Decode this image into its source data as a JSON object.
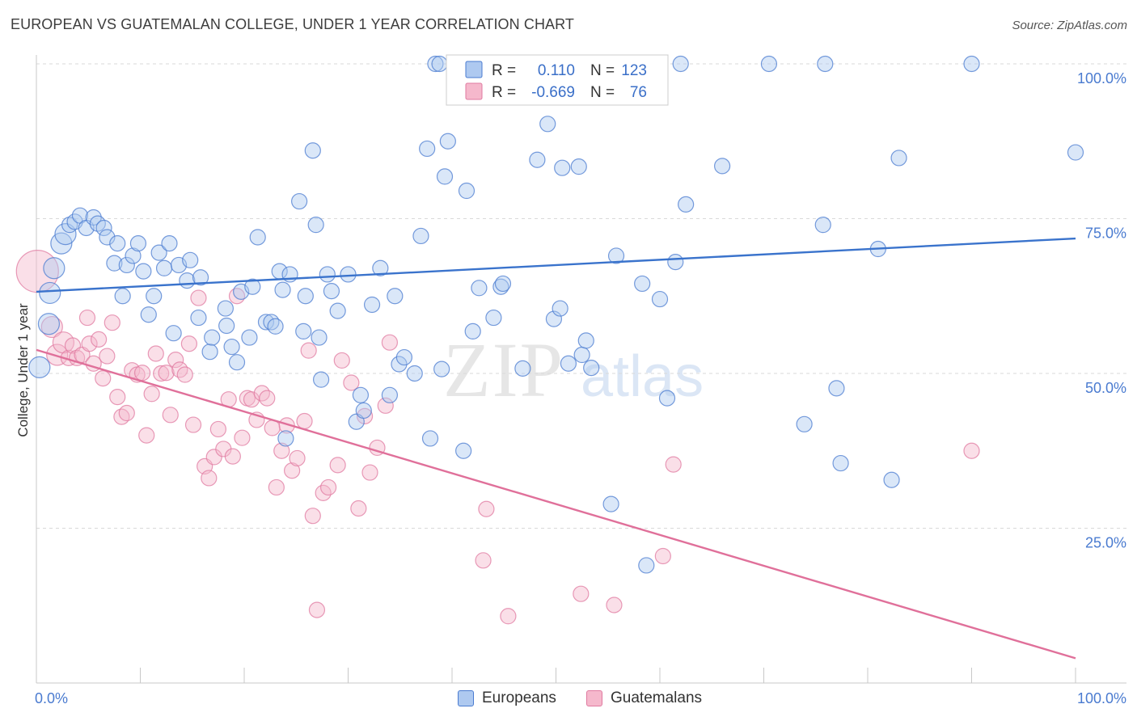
{
  "header": {
    "title": "EUROPEAN VS GUATEMALAN COLLEGE, UNDER 1 YEAR CORRELATION CHART",
    "source": "Source: ZipAtlas.com"
  },
  "watermark": {
    "zip": "ZIP",
    "atlas": "atlas"
  },
  "colors": {
    "blue": "#4a7bd0",
    "blue_fill": "#aec9f0",
    "blue_line": "#3a73cc",
    "pink": "#e07aa0",
    "pink_fill": "#f5b8cc",
    "pink_line": "#e0709a",
    "grid": "#d9d9d9"
  },
  "stats_legend": [
    {
      "series": "Europeans",
      "r_label": "R =",
      "r_value": "0.110",
      "n_label": "N =",
      "n_value": "123"
    },
    {
      "series": "Guatemalans",
      "r_label": "R =",
      "r_value": "-0.669",
      "n_label": "N =",
      "n_value": "76"
    }
  ],
  "chart_data": {
    "type": "scatter",
    "title": "EUROPEAN VS GUATEMALAN COLLEGE, UNDER 1 YEAR CORRELATION CHART",
    "xlabel": "",
    "ylabel": "College, Under 1 year",
    "xlim": [
      0,
      100
    ],
    "ylim": [
      0,
      100
    ],
    "x_tick_labels": [
      "0.0%",
      "100.0%"
    ],
    "y_tick_labels": [
      "25.0%",
      "50.0%",
      "75.0%",
      "100.0%"
    ],
    "y_ticks": [
      25,
      50,
      75,
      100
    ],
    "legend": [
      "Europeans",
      "Guatemalans"
    ],
    "legend_position": "bottom-center",
    "series": [
      {
        "name": "Europeans",
        "trend": {
          "x": [
            0,
            100
          ],
          "y": [
            63.2,
            71.8
          ]
        },
        "points": [
          [
            0.3,
            51
          ],
          [
            1.2,
            58
          ],
          [
            1.3,
            63
          ],
          [
            1.7,
            67
          ],
          [
            2.4,
            71
          ],
          [
            2.8,
            72.5
          ],
          [
            3.2,
            74
          ],
          [
            3.7,
            74.5
          ],
          [
            4.2,
            75.5
          ],
          [
            4.8,
            73.5
          ],
          [
            5.5,
            75.2
          ],
          [
            5.9,
            74.2
          ],
          [
            6.5,
            73.5
          ],
          [
            6.8,
            72
          ],
          [
            7.5,
            67.8
          ],
          [
            7.8,
            71
          ],
          [
            8.3,
            62.5
          ],
          [
            8.7,
            67.5
          ],
          [
            9.3,
            69
          ],
          [
            9.8,
            71
          ],
          [
            10.3,
            66.5
          ],
          [
            10.8,
            59.5
          ],
          [
            11.3,
            62.5
          ],
          [
            11.8,
            69.5
          ],
          [
            12.3,
            67
          ],
          [
            12.8,
            71
          ],
          [
            13.2,
            56.5
          ],
          [
            13.7,
            67.5
          ],
          [
            14.5,
            65
          ],
          [
            14.8,
            68.3
          ],
          [
            15.8,
            65.5
          ],
          [
            15.6,
            59
          ],
          [
            16.7,
            53.5
          ],
          [
            16.9,
            55.8
          ],
          [
            18.2,
            60.5
          ],
          [
            18.3,
            57.7
          ],
          [
            18.8,
            54.3
          ],
          [
            19.3,
            51.8
          ],
          [
            19.7,
            63.2
          ],
          [
            20.5,
            55.8
          ],
          [
            20.8,
            64
          ],
          [
            21.3,
            72
          ],
          [
            22.1,
            58.3
          ],
          [
            22.6,
            58.3
          ],
          [
            23.0,
            57.6
          ],
          [
            23.4,
            66.5
          ],
          [
            23.7,
            63.5
          ],
          [
            24.0,
            39.5
          ],
          [
            24.4,
            66
          ],
          [
            25.3,
            77.8
          ],
          [
            25.7,
            56.8
          ],
          [
            25.9,
            62.5
          ],
          [
            26.6,
            86
          ],
          [
            26.9,
            74
          ],
          [
            27.2,
            55.8
          ],
          [
            27.4,
            49
          ],
          [
            28.0,
            66
          ],
          [
            28.4,
            63.3
          ],
          [
            29.0,
            60.1
          ],
          [
            30.0,
            66
          ],
          [
            30.8,
            42.2
          ],
          [
            31.2,
            46.5
          ],
          [
            31.5,
            44
          ],
          [
            32.3,
            61.1
          ],
          [
            33.1,
            67
          ],
          [
            34.0,
            46.5
          ],
          [
            34.5,
            62.5
          ],
          [
            34.9,
            51.5
          ],
          [
            35.4,
            52.6
          ],
          [
            36.4,
            50
          ],
          [
            37.0,
            72.2
          ],
          [
            37.6,
            86.3
          ],
          [
            37.9,
            39.5
          ],
          [
            38.4,
            100
          ],
          [
            38.8,
            100
          ],
          [
            39.0,
            50.7
          ],
          [
            39.3,
            81.8
          ],
          [
            39.6,
            87.5
          ],
          [
            41.1,
            37.5
          ],
          [
            41.4,
            79.5
          ],
          [
            42.0,
            56.8
          ],
          [
            42.6,
            63.8
          ],
          [
            44.0,
            59
          ],
          [
            44.7,
            64
          ],
          [
            44.9,
            64.5
          ],
          [
            46.8,
            50.8
          ],
          [
            47.5,
            100
          ],
          [
            48.2,
            84.5
          ],
          [
            49.2,
            90.3
          ],
          [
            49.8,
            58.8
          ],
          [
            50.4,
            60.5
          ],
          [
            50.6,
            83.2
          ],
          [
            51.2,
            51.6
          ],
          [
            52.2,
            83.4
          ],
          [
            52.5,
            53
          ],
          [
            52.9,
            55.3
          ],
          [
            53.4,
            50.9
          ],
          [
            55.3,
            28.9
          ],
          [
            55.8,
            69
          ],
          [
            58.3,
            64.5
          ],
          [
            58.7,
            19
          ],
          [
            60.0,
            62
          ],
          [
            60.7,
            46
          ],
          [
            61.5,
            68
          ],
          [
            62.0,
            100
          ],
          [
            62.5,
            77.3
          ],
          [
            66.0,
            83.5
          ],
          [
            70.5,
            100
          ],
          [
            73.9,
            41.8
          ],
          [
            75.7,
            74
          ],
          [
            75.9,
            100
          ],
          [
            77.0,
            47.6
          ],
          [
            77.4,
            35.5
          ],
          [
            81.0,
            70.1
          ],
          [
            82.3,
            32.8
          ],
          [
            83.0,
            84.8
          ],
          [
            90.0,
            100
          ],
          [
            100.0,
            85.7
          ]
        ]
      },
      {
        "name": "Guatemalans",
        "trend": {
          "x": [
            0,
            100
          ],
          "y": [
            53.8,
            4
          ]
        },
        "points": [
          [
            0.1,
            66.5
          ],
          [
            1.5,
            57.5
          ],
          [
            2.0,
            53
          ],
          [
            2.6,
            55
          ],
          [
            3.1,
            52.5
          ],
          [
            3.5,
            54.5
          ],
          [
            3.9,
            52.5
          ],
          [
            4.4,
            53
          ],
          [
            4.9,
            59
          ],
          [
            5.1,
            54.8
          ],
          [
            5.5,
            51.6
          ],
          [
            6.0,
            55.5
          ],
          [
            6.4,
            49.2
          ],
          [
            6.8,
            52.8
          ],
          [
            7.3,
            58.2
          ],
          [
            7.8,
            46.2
          ],
          [
            8.2,
            43
          ],
          [
            8.7,
            43.6
          ],
          [
            9.2,
            50.5
          ],
          [
            9.7,
            49.8
          ],
          [
            10.2,
            50.1
          ],
          [
            10.6,
            40
          ],
          [
            11.1,
            46.7
          ],
          [
            11.5,
            53.2
          ],
          [
            12.0,
            50
          ],
          [
            12.5,
            50.1
          ],
          [
            12.9,
            43.3
          ],
          [
            13.4,
            52.2
          ],
          [
            13.8,
            50.6
          ],
          [
            14.3,
            49.8
          ],
          [
            14.7,
            54.8
          ],
          [
            15.1,
            41.7
          ],
          [
            15.6,
            62.2
          ],
          [
            16.2,
            35
          ],
          [
            16.6,
            33.1
          ],
          [
            17.1,
            36.5
          ],
          [
            17.5,
            41
          ],
          [
            18.0,
            37.8
          ],
          [
            18.5,
            45.8
          ],
          [
            18.9,
            36.6
          ],
          [
            19.3,
            62.5
          ],
          [
            19.8,
            39.6
          ],
          [
            20.3,
            46
          ],
          [
            20.7,
            45.8
          ],
          [
            21.2,
            42.5
          ],
          [
            21.7,
            46.8
          ],
          [
            22.2,
            46
          ],
          [
            22.7,
            41.2
          ],
          [
            23.1,
            31.6
          ],
          [
            23.6,
            37.5
          ],
          [
            24.1,
            41.6
          ],
          [
            24.6,
            34.3
          ],
          [
            25.1,
            36.3
          ],
          [
            25.8,
            42.3
          ],
          [
            26.2,
            53.7
          ],
          [
            26.6,
            27
          ],
          [
            27.0,
            11.8
          ],
          [
            27.6,
            30.7
          ],
          [
            28.1,
            31.6
          ],
          [
            29.0,
            35.2
          ],
          [
            29.4,
            52.1
          ],
          [
            30.3,
            48.5
          ],
          [
            31.0,
            28.2
          ],
          [
            31.6,
            43.1
          ],
          [
            32.1,
            34
          ],
          [
            32.8,
            38
          ],
          [
            33.6,
            44.8
          ],
          [
            34.0,
            55
          ],
          [
            43.0,
            19.8
          ],
          [
            43.3,
            28.1
          ],
          [
            45.4,
            10.8
          ],
          [
            52.4,
            14.4
          ],
          [
            55.6,
            12.6
          ],
          [
            60.3,
            20.5
          ],
          [
            61.3,
            35.3
          ],
          [
            90.0,
            37.5
          ]
        ]
      }
    ]
  }
}
